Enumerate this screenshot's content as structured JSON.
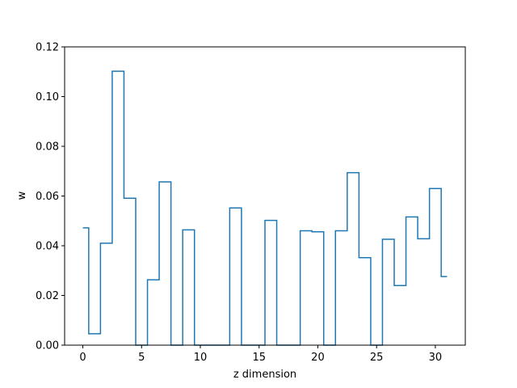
{
  "chart_data": {
    "type": "line",
    "drawstyle": "steps-mid",
    "title": "",
    "xlabel": "z dimension",
    "ylabel": "w",
    "xlim": [
      -1.55,
      32.55
    ],
    "ylim": [
      0,
      0.12
    ],
    "xticks": [
      0,
      5,
      10,
      15,
      20,
      25,
      30
    ],
    "yticks": [
      0.0,
      0.02,
      0.04,
      0.06,
      0.08,
      0.1,
      0.12
    ],
    "ytick_labels": [
      "0.00",
      "0.02",
      "0.04",
      "0.06",
      "0.08",
      "0.10",
      "0.12"
    ],
    "grid": false,
    "line_color": "#1f77b4",
    "series": [
      {
        "x": [
          0,
          1,
          2,
          3,
          4,
          5,
          6,
          7,
          8,
          9,
          10,
          11,
          12,
          13,
          14,
          15,
          16,
          17,
          18,
          19,
          20,
          21,
          22,
          23,
          24,
          25,
          26,
          27,
          28,
          29,
          30,
          31
        ],
        "values": [
          0.0472,
          0.0046,
          0.041,
          0.1102,
          0.0591,
          0.0,
          0.0263,
          0.0657,
          0.0,
          0.0464,
          0.0,
          0.0,
          0.0,
          0.0552,
          0.0,
          0.0,
          0.0502,
          0.0,
          0.0,
          0.046,
          0.0456,
          0.0,
          0.046,
          0.0694,
          0.0352,
          0.0,
          0.0426,
          0.024,
          0.0516,
          0.0428,
          0.063,
          0.0276
        ]
      }
    ]
  }
}
